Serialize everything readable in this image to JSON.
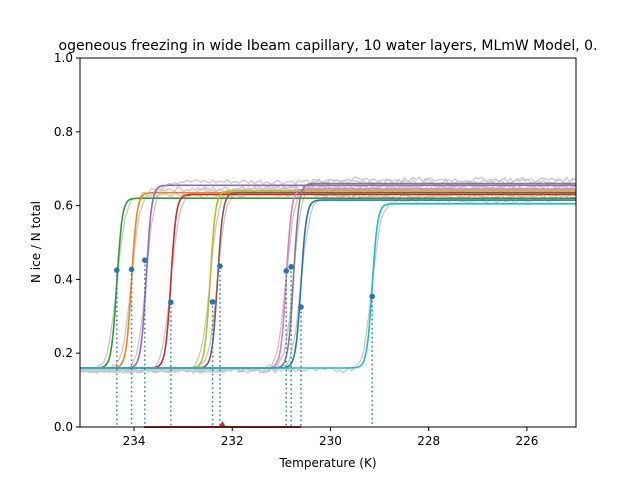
{
  "chart_data": {
    "type": "line",
    "title": "ogeneous freezing in wide Ibeam capillary, 10 water layers, MLmW Model, 0.",
    "xlabel": "Temperature (K)",
    "ylabel": "N ice / N total",
    "xlim": [
      235.1,
      225.0
    ],
    "ylim": [
      0.0,
      1.0
    ],
    "x_inverted": true,
    "grid": false,
    "x_ticks": [
      234,
      232,
      230,
      228,
      226
    ],
    "y_ticks": [
      0.0,
      0.2,
      0.4,
      0.6,
      0.8,
      1.0
    ],
    "x_tick_labels": [
      "234",
      "232",
      "230",
      "228",
      "226"
    ],
    "y_tick_labels": [
      "0.0",
      "0.2",
      "0.4",
      "0.6",
      "0.8",
      "1.0"
    ],
    "baseline": 0.16,
    "series": [
      {
        "color": "#2ca02c",
        "t_mid": 234.35,
        "plateau": 0.62
      },
      {
        "color": "#ff7f0e",
        "t_mid": 234.05,
        "plateau": 0.635
      },
      {
        "color": "#9467bd",
        "t_mid": 233.75,
        "plateau": 0.655
      },
      {
        "color": "#d62728",
        "t_mid": 233.25,
        "plateau": 0.63
      },
      {
        "color": "#bcbd22",
        "t_mid": 232.45,
        "plateau": 0.64
      },
      {
        "color": "#8c564b",
        "t_mid": 232.3,
        "plateau": 0.635
      },
      {
        "color": "#e377c2",
        "t_mid": 230.9,
        "plateau": 0.645
      },
      {
        "color": "#7f7f7f",
        "t_mid": 230.75,
        "plateau": 0.66
      },
      {
        "color": "#1f77b4",
        "t_mid": 230.6,
        "plateau": 0.615
      },
      {
        "color": "#17becf",
        "t_mid": 229.15,
        "plateau": 0.605
      }
    ],
    "onset_markers": {
      "color": "#1f77b4",
      "points": [
        {
          "x": 234.35,
          "y": 0.425
        },
        {
          "x": 234.05,
          "y": 0.427
        },
        {
          "x": 233.78,
          "y": 0.452
        },
        {
          "x": 233.25,
          "y": 0.338
        },
        {
          "x": 232.4,
          "y": 0.339
        },
        {
          "x": 232.25,
          "y": 0.436
        },
        {
          "x": 230.9,
          "y": 0.423
        },
        {
          "x": 230.8,
          "y": 0.434
        },
        {
          "x": 230.6,
          "y": 0.325
        },
        {
          "x": 229.15,
          "y": 0.354
        }
      ]
    },
    "red_segment": {
      "color": "#d62728",
      "x_from": 233.8,
      "x_to": 230.6,
      "y": 0.0,
      "marker_x": 232.2
    }
  }
}
